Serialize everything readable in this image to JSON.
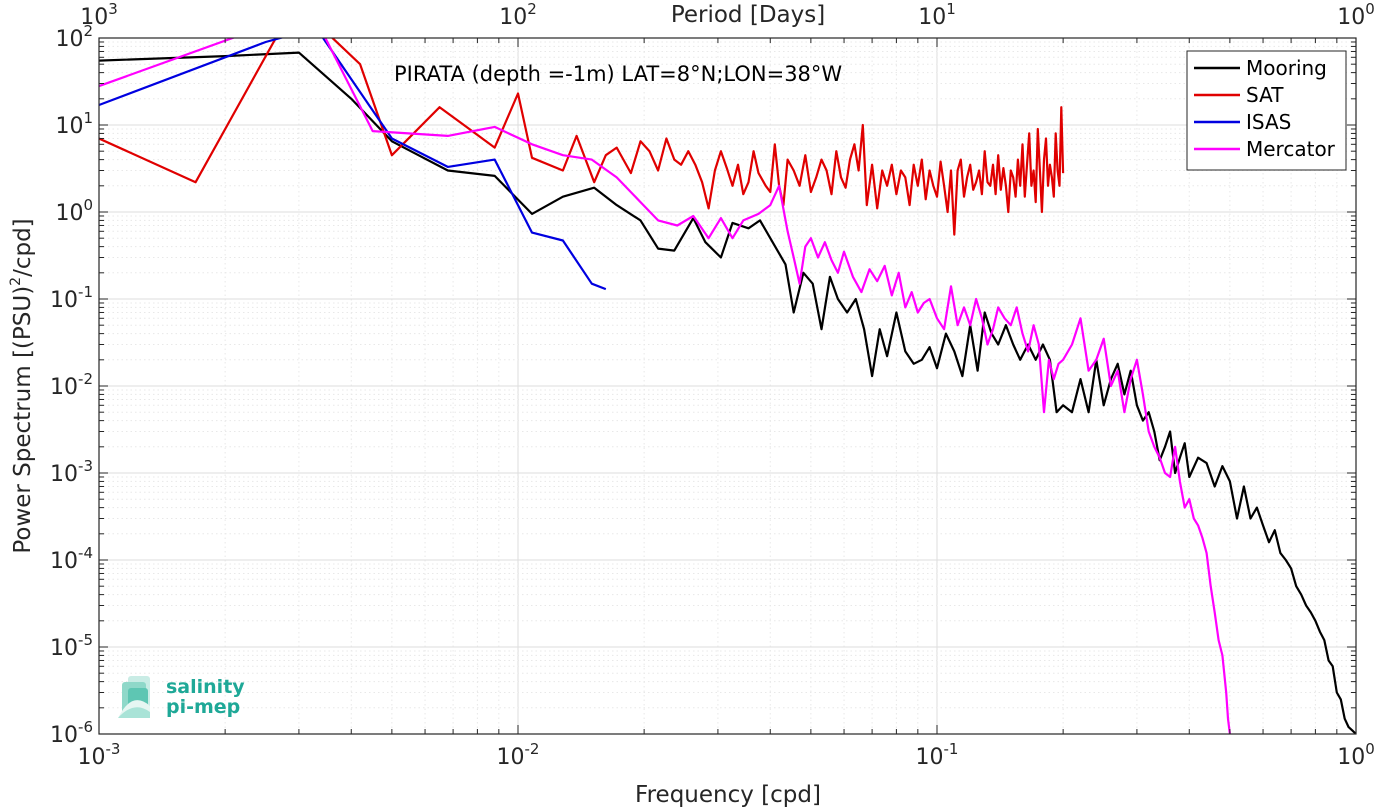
{
  "chart_data": {
    "type": "line",
    "title": "PIRATA (depth =-1m) LAT=8°N;LON=38°W",
    "xlabel": "Frequency [cpd]",
    "ylabel": "Power Spectrum [(PSU)",
    "ylabel_sup": "2",
    "ylabel_tail": "/cpd]",
    "top_xlabel": "Period [Days]",
    "xscale": "log",
    "yscale": "log",
    "xlim": [
      0.001,
      1
    ],
    "ylim": [
      1e-06,
      100
    ],
    "grid": true,
    "legend_position": "top-right",
    "x_ticks": [
      {
        "value": 0.001,
        "base": "10",
        "exp": "-3"
      },
      {
        "value": 0.01,
        "base": "10",
        "exp": "-2"
      },
      {
        "value": 0.1,
        "base": "10",
        "exp": "-1"
      },
      {
        "value": 1,
        "base": "10",
        "exp": "0"
      }
    ],
    "top_ticks": [
      {
        "value": 0.001,
        "base": "10",
        "exp": "3"
      },
      {
        "value": 0.01,
        "base": "10",
        "exp": "2"
      },
      {
        "value": 0.1,
        "base": "10",
        "exp": "1"
      },
      {
        "value": 1,
        "base": "10",
        "exp": "0"
      }
    ],
    "y_ticks": [
      {
        "value": 100,
        "base": "10",
        "exp": "2"
      },
      {
        "value": 10,
        "base": "10",
        "exp": "1"
      },
      {
        "value": 1,
        "base": "10",
        "exp": "0"
      },
      {
        "value": 0.1,
        "base": "10",
        "exp": "-1"
      },
      {
        "value": 0.01,
        "base": "10",
        "exp": "-2"
      },
      {
        "value": 0.001,
        "base": "10",
        "exp": "-3"
      },
      {
        "value": 0.0001,
        "base": "10",
        "exp": "-4"
      },
      {
        "value": 1e-05,
        "base": "10",
        "exp": "-5"
      },
      {
        "value": 1e-06,
        "base": "10",
        "exp": "-6"
      }
    ],
    "series": [
      {
        "name": "Mooring",
        "color": "#000000",
        "x": [
          0.001,
          0.002,
          0.003,
          0.004,
          0.005,
          0.0068,
          0.0088,
          0.0108,
          0.0128,
          0.0152,
          0.0172,
          0.0196,
          0.0216,
          0.0236,
          0.0262,
          0.028,
          0.0305,
          0.0325,
          0.0355,
          0.0378,
          0.04,
          0.0435,
          0.0455,
          0.048,
          0.0505,
          0.053,
          0.0555,
          0.058,
          0.061,
          0.064,
          0.067,
          0.07,
          0.073,
          0.076,
          0.08,
          0.084,
          0.088,
          0.092,
          0.096,
          0.1,
          0.105,
          0.11,
          0.115,
          0.12,
          0.125,
          0.13,
          0.135,
          0.14,
          0.146,
          0.152,
          0.158,
          0.165,
          0.172,
          0.179,
          0.186,
          0.193,
          0.2,
          0.21,
          0.22,
          0.23,
          0.24,
          0.25,
          0.26,
          0.27,
          0.28,
          0.29,
          0.3,
          0.31,
          0.32,
          0.33,
          0.34,
          0.35,
          0.36,
          0.37,
          0.38,
          0.39,
          0.4,
          0.42,
          0.44,
          0.46,
          0.48,
          0.5,
          0.52,
          0.54,
          0.56,
          0.58,
          0.6,
          0.62,
          0.64,
          0.66,
          0.68,
          0.7,
          0.72,
          0.74,
          0.76,
          0.78,
          0.8,
          0.82,
          0.84,
          0.86,
          0.88,
          0.9,
          0.92,
          0.94,
          0.96,
          0.98,
          1.0
        ],
        "y": [
          55,
          62,
          68,
          20,
          6.5,
          3.0,
          2.6,
          0.95,
          1.5,
          1.9,
          1.2,
          0.8,
          0.38,
          0.36,
          0.85,
          0.45,
          0.3,
          0.75,
          0.65,
          0.8,
          0.5,
          0.25,
          0.07,
          0.2,
          0.15,
          0.045,
          0.18,
          0.1,
          0.07,
          0.1,
          0.045,
          0.013,
          0.045,
          0.022,
          0.07,
          0.025,
          0.018,
          0.02,
          0.028,
          0.016,
          0.04,
          0.025,
          0.013,
          0.05,
          0.015,
          0.07,
          0.04,
          0.03,
          0.05,
          0.03,
          0.02,
          0.03,
          0.02,
          0.03,
          0.02,
          0.005,
          0.006,
          0.005,
          0.012,
          0.005,
          0.02,
          0.006,
          0.012,
          0.018,
          0.008,
          0.015,
          0.006,
          0.004,
          0.005,
          0.003,
          0.0014,
          0.002,
          0.003,
          0.001,
          0.0015,
          0.0022,
          0.0009,
          0.0015,
          0.0013,
          0.0007,
          0.0012,
          0.0008,
          0.0003,
          0.0007,
          0.0003,
          0.0004,
          0.00025,
          0.00016,
          0.00022,
          0.00012,
          0.0001,
          8e-05,
          5e-05,
          4e-05,
          3e-05,
          2.5e-05,
          2e-05,
          1.5e-05,
          1.2e-05,
          7e-06,
          6e-06,
          3e-06,
          2.5e-06,
          1.5e-06,
          1.2e-06,
          1.1e-06,
          1e-06
        ]
      },
      {
        "name": "SAT",
        "color": "#e00000",
        "x": [
          0.001,
          0.0017,
          0.0027,
          0.0033,
          0.0042,
          0.005,
          0.0065,
          0.0088,
          0.01,
          0.0108,
          0.0128,
          0.0138,
          0.0152,
          0.0162,
          0.0172,
          0.0186,
          0.0196,
          0.0206,
          0.0216,
          0.0226,
          0.0236,
          0.0245,
          0.0255,
          0.0265,
          0.0275,
          0.0285,
          0.0295,
          0.0305,
          0.0315,
          0.0325,
          0.0335,
          0.0345,
          0.0355,
          0.0365,
          0.0375,
          0.039,
          0.04,
          0.041,
          0.042,
          0.043,
          0.044,
          0.0455,
          0.047,
          0.0485,
          0.05,
          0.0515,
          0.053,
          0.0545,
          0.056,
          0.0575,
          0.059,
          0.0605,
          0.062,
          0.0635,
          0.065,
          0.0665,
          0.068,
          0.07,
          0.072,
          0.074,
          0.076,
          0.078,
          0.08,
          0.082,
          0.084,
          0.086,
          0.088,
          0.09,
          0.092,
          0.094,
          0.096,
          0.098,
          0.1,
          0.102,
          0.104,
          0.106,
          0.108,
          0.11,
          0.112,
          0.114,
          0.116,
          0.118,
          0.12,
          0.122,
          0.124,
          0.126,
          0.128,
          0.13,
          0.132,
          0.134,
          0.136,
          0.138,
          0.14,
          0.142,
          0.144,
          0.146,
          0.148,
          0.15,
          0.152,
          0.154,
          0.156,
          0.158,
          0.16,
          0.162,
          0.164,
          0.166,
          0.168,
          0.17,
          0.172,
          0.174,
          0.176,
          0.178,
          0.18,
          0.182,
          0.184,
          0.186,
          0.188,
          0.19,
          0.192,
          0.194,
          0.196,
          0.198,
          0.2
        ],
        "y": [
          7,
          2.2,
          120,
          150,
          50,
          4.5,
          16,
          5.5,
          23,
          4.2,
          3.0,
          7.5,
          2.2,
          4.5,
          5.5,
          2.8,
          6.5,
          5.0,
          3.0,
          7.0,
          4.0,
          3.5,
          5.0,
          3.5,
          2.2,
          1.1,
          3.0,
          5.0,
          3.2,
          2.0,
          3.5,
          1.6,
          2.2,
          5.0,
          2.8,
          2.0,
          1.7,
          6.0,
          2.0,
          1.2,
          4.0,
          3.0,
          2.0,
          4.5,
          1.7,
          2.5,
          4.0,
          3.0,
          1.6,
          5.0,
          2.5,
          1.9,
          4.0,
          6.0,
          3.0,
          10,
          1.2,
          3.5,
          1.1,
          3.0,
          2.0,
          3.5,
          1.6,
          3.0,
          2.5,
          1.2,
          3.5,
          2.0,
          4.0,
          1.4,
          3.0,
          2.0,
          1.5,
          3.8,
          2.0,
          1.0,
          3.0,
          0.55,
          3.0,
          4.0,
          1.5,
          2.5,
          3.5,
          1.8,
          2.2,
          3.0,
          1.6,
          5.0,
          2.2,
          2.0,
          3.5,
          1.6,
          4.5,
          1.8,
          3.2,
          2.0,
          1.0,
          3.0,
          2.5,
          1.5,
          4.0,
          2.0,
          6.0,
          1.5,
          3.5,
          8.0,
          2.0,
          3.0,
          1.3,
          9.0,
          3.0,
          1.0,
          4.0,
          7.0,
          2.0,
          3.5,
          2.5,
          1.5,
          8.0,
          3.0,
          2.0,
          16,
          2.8
        ]
      },
      {
        "name": "ISAS",
        "color": "#0000e0",
        "x": [
          0.001,
          0.0025,
          0.0033,
          0.005,
          0.0068,
          0.0088,
          0.0108,
          0.0128,
          0.015,
          0.0162
        ],
        "y": [
          17,
          90,
          130,
          7.0,
          3.3,
          4.0,
          0.58,
          0.47,
          0.15,
          0.13
        ]
      },
      {
        "name": "Mercator",
        "color": "#ff00ff",
        "x": [
          0.001,
          0.0022,
          0.0033,
          0.0045,
          0.0068,
          0.0088,
          0.0108,
          0.0128,
          0.015,
          0.0172,
          0.0196,
          0.0216,
          0.024,
          0.0262,
          0.0285,
          0.0305,
          0.0325,
          0.0345,
          0.0375,
          0.04,
          0.042,
          0.044,
          0.0455,
          0.047,
          0.0485,
          0.05,
          0.052,
          0.054,
          0.056,
          0.058,
          0.06,
          0.063,
          0.066,
          0.069,
          0.072,
          0.075,
          0.078,
          0.081,
          0.084,
          0.087,
          0.09,
          0.093,
          0.096,
          0.1,
          0.104,
          0.108,
          0.112,
          0.116,
          0.12,
          0.124,
          0.128,
          0.132,
          0.136,
          0.14,
          0.145,
          0.15,
          0.155,
          0.16,
          0.165,
          0.17,
          0.175,
          0.18,
          0.185,
          0.19,
          0.195,
          0.2,
          0.21,
          0.22,
          0.23,
          0.24,
          0.25,
          0.26,
          0.27,
          0.28,
          0.29,
          0.3,
          0.31,
          0.32,
          0.33,
          0.34,
          0.35,
          0.36,
          0.37,
          0.38,
          0.39,
          0.4,
          0.41,
          0.42,
          0.43,
          0.44,
          0.45,
          0.46,
          0.47,
          0.48,
          0.49,
          0.495,
          0.5
        ],
        "y": [
          28,
          110,
          160,
          8.5,
          7.5,
          9.5,
          6.0,
          4.5,
          4.0,
          2.5,
          1.3,
          0.8,
          0.7,
          0.9,
          0.5,
          0.85,
          0.5,
          0.8,
          0.95,
          1.2,
          2.0,
          0.6,
          0.3,
          0.15,
          0.4,
          0.5,
          0.3,
          0.45,
          0.28,
          0.2,
          0.35,
          0.18,
          0.12,
          0.22,
          0.16,
          0.24,
          0.11,
          0.2,
          0.08,
          0.12,
          0.07,
          0.09,
          0.1,
          0.06,
          0.045,
          0.14,
          0.05,
          0.08,
          0.05,
          0.1,
          0.06,
          0.03,
          0.045,
          0.08,
          0.06,
          0.05,
          0.08,
          0.04,
          0.025,
          0.05,
          0.03,
          0.005,
          0.02,
          0.012,
          0.018,
          0.02,
          0.03,
          0.06,
          0.015,
          0.02,
          0.035,
          0.01,
          0.015,
          0.005,
          0.012,
          0.02,
          0.008,
          0.003,
          0.002,
          0.0015,
          0.001,
          0.0009,
          0.002,
          0.0008,
          0.0004,
          0.0005,
          0.0003,
          0.00025,
          0.00018,
          0.00012,
          5e-05,
          2.5e-05,
          1.2e-05,
          8e-06,
          3e-06,
          1.5e-06,
          1e-06
        ]
      }
    ]
  },
  "logo": {
    "line1": "salinity",
    "line2": "pi-mep",
    "color": "#1ea897"
  }
}
